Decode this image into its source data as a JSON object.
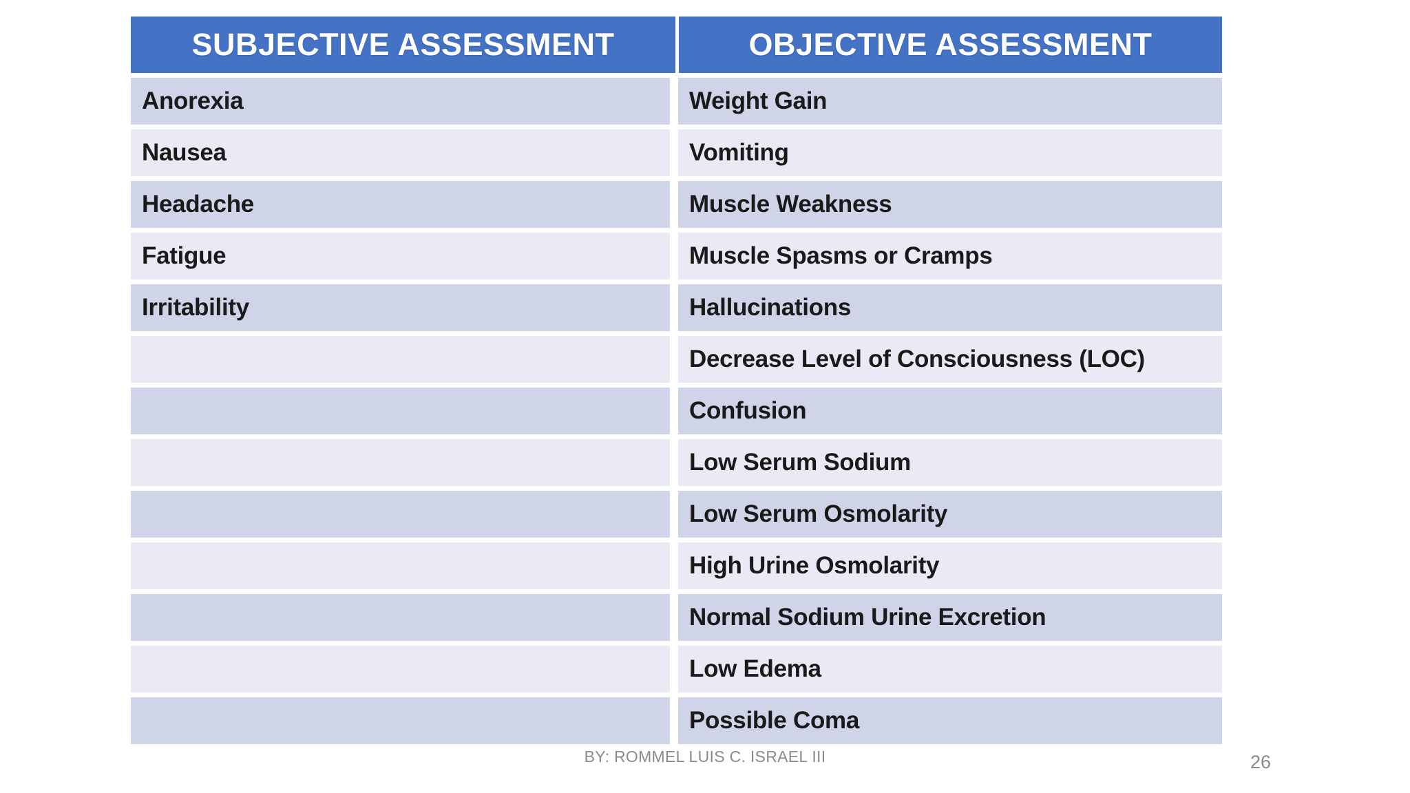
{
  "slide": {
    "footer_credit": "BY: ROMMEL LUIS C. ISRAEL III",
    "page_number": "26"
  },
  "colors": {
    "header_bg": "#4472C4",
    "band_dark": "#CFD4E8",
    "band_light": "#E9EAF4",
    "header_text": "#FFFFFF",
    "cell_text": "#1A1A1A",
    "footer_text": "#8A8A8A",
    "page_bg": "#FFFFFF"
  },
  "table": {
    "columns": [
      {
        "header": "SUBJECTIVE ASSESSMENT"
      },
      {
        "header": "OBJECTIVE ASSESSMENT"
      }
    ],
    "rows": [
      {
        "subjective": "Anorexia",
        "objective": "Weight Gain"
      },
      {
        "subjective": "Nausea",
        "objective": "Vomiting"
      },
      {
        "subjective": "Headache",
        "objective": "Muscle Weakness"
      },
      {
        "subjective": "Fatigue",
        "objective": "Muscle Spasms or Cramps"
      },
      {
        "subjective": "Irritability",
        "objective": "Hallucinations"
      },
      {
        "subjective": "",
        "objective": "Decrease Level of Consciousness (LOC)"
      },
      {
        "subjective": "",
        "objective": "Confusion"
      },
      {
        "subjective": "",
        "objective": "Low Serum Sodium"
      },
      {
        "subjective": "",
        "objective": "Low Serum Osmolarity"
      },
      {
        "subjective": "",
        "objective": "High Urine Osmolarity"
      },
      {
        "subjective": "",
        "objective": "Normal Sodium Urine Excretion"
      },
      {
        "subjective": "",
        "objective": "Low Edema"
      },
      {
        "subjective": "",
        "objective": "Possible Coma"
      }
    ]
  }
}
